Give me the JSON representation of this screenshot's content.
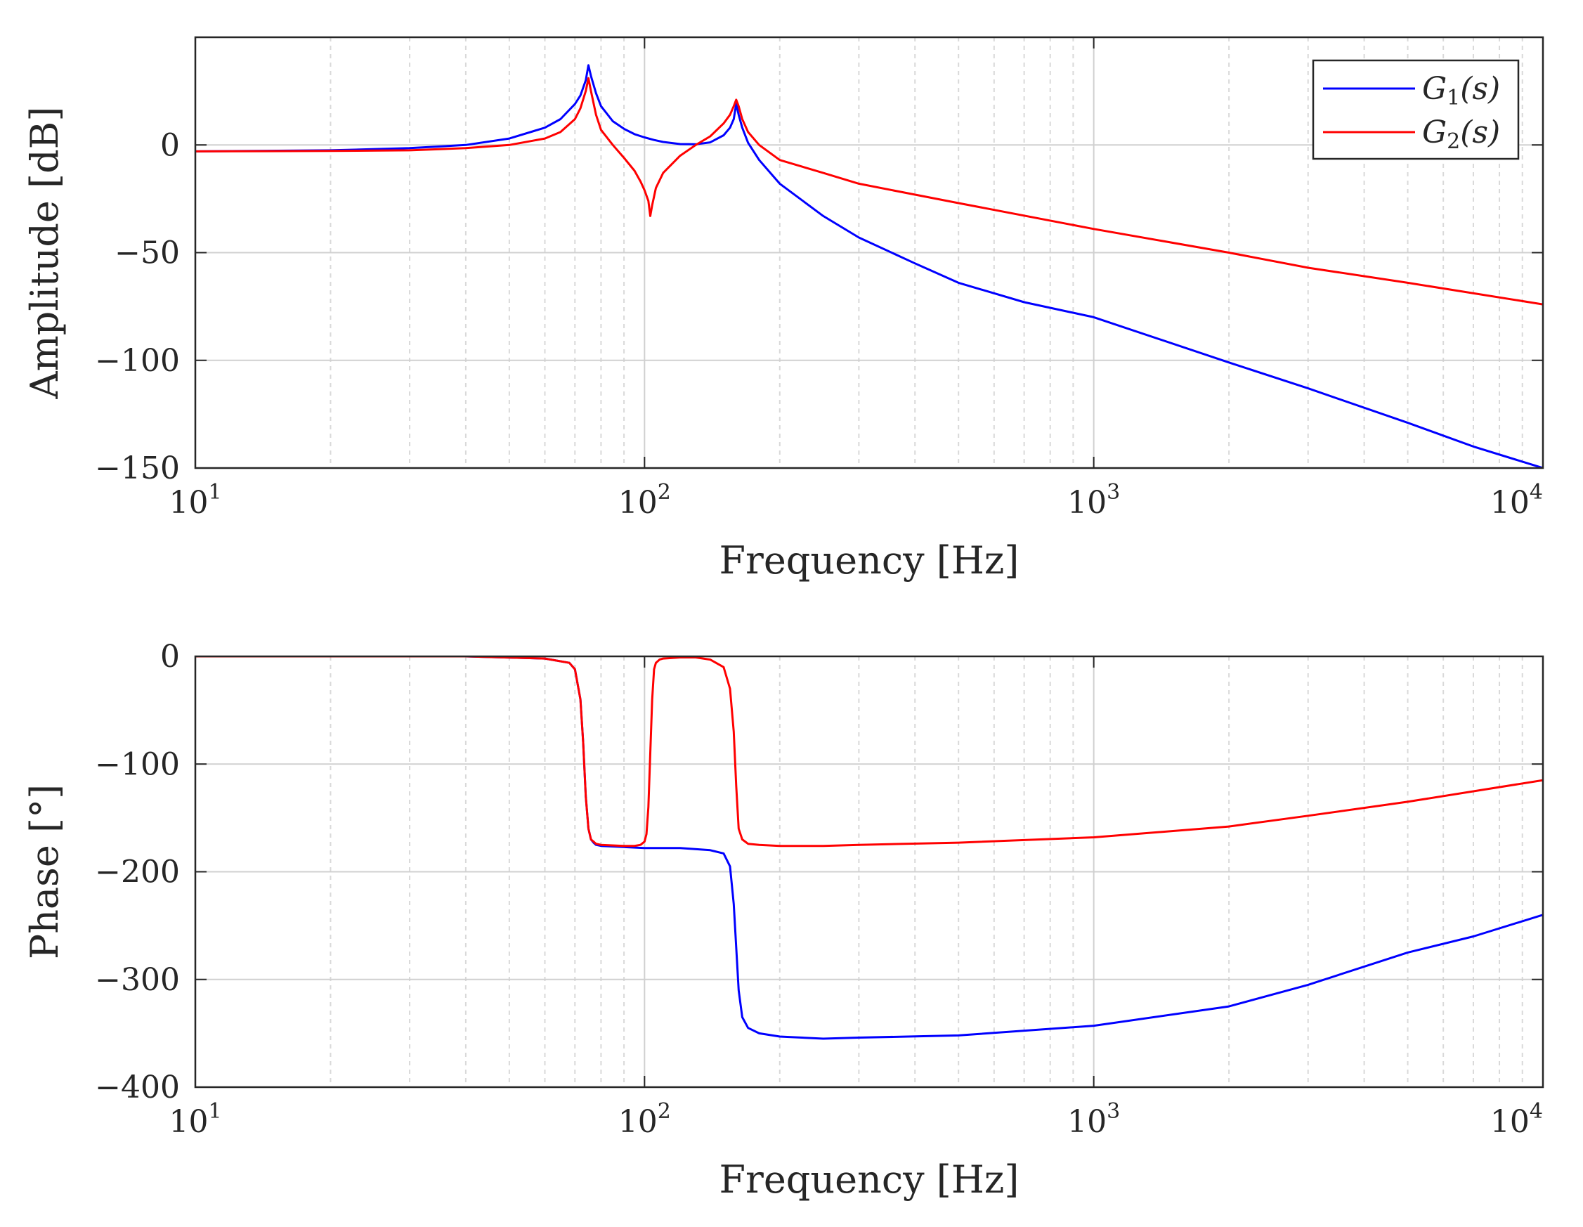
{
  "chart_data": [
    {
      "id": "amplitude",
      "type": "line",
      "xscale": "log",
      "xlim": [
        10,
        10000
      ],
      "ylim": [
        -150,
        50
      ],
      "yticks": [
        0,
        -50,
        -100,
        -150
      ],
      "ytick_labels": [
        "0",
        "−50",
        "−100",
        "−150"
      ],
      "xticks": [
        10,
        100,
        1000,
        10000
      ],
      "xtick_labels": [
        {
          "base": "10",
          "exp": "1"
        },
        {
          "base": "10",
          "exp": "2"
        },
        {
          "base": "10",
          "exp": "3"
        },
        {
          "base": "10",
          "exp": "4"
        }
      ],
      "xlabel": "Frequency [Hz]",
      "ylabel": "Amplitude [dB]",
      "grid": true,
      "legend_position": "top-right",
      "series": [
        {
          "name": "G1(s)",
          "legend_main": "G",
          "legend_sub": "1",
          "legend_tail": "(s)",
          "color": "#0000ff",
          "x": [
            10,
            20,
            30,
            40,
            50,
            60,
            65,
            70,
            72,
            74,
            75,
            76,
            78,
            80,
            85,
            90,
            95,
            100,
            105,
            110,
            120,
            130,
            140,
            150,
            155,
            158,
            160,
            162,
            165,
            170,
            180,
            200,
            250,
            300,
            400,
            500,
            700,
            1000,
            2000,
            3000,
            5000,
            7000,
            10000
          ],
          "y": [
            -3,
            -2.5,
            -1.5,
            0,
            3,
            8,
            12,
            19,
            23,
            30,
            37,
            32,
            24,
            18,
            11,
            7.5,
            5,
            3.5,
            2.3,
            1.4,
            0.4,
            0.3,
            1.2,
            4.5,
            8,
            12,
            19,
            14,
            8,
            1,
            -7,
            -18,
            -33,
            -43,
            -55,
            -64,
            -73,
            -80,
            -101,
            -113,
            -129,
            -140,
            -150
          ]
        },
        {
          "name": "G2(s)",
          "legend_main": "G",
          "legend_sub": "2",
          "legend_tail": "(s)",
          "color": "#ff0000",
          "x": [
            10,
            20,
            30,
            40,
            50,
            60,
            65,
            70,
            72,
            74,
            75,
            76,
            78,
            80,
            85,
            90,
            95,
            98,
            100,
            102,
            103,
            104,
            106,
            110,
            120,
            130,
            140,
            150,
            155,
            158,
            160,
            162,
            165,
            170,
            180,
            200,
            250,
            300,
            500,
            1000,
            2000,
            3000,
            5000,
            10000
          ],
          "y": [
            -3,
            -2.8,
            -2.5,
            -1.5,
            0,
            3,
            6,
            12,
            17,
            25,
            31,
            25,
            14,
            7,
            0,
            -6,
            -12,
            -17,
            -21,
            -26,
            -33,
            -28,
            -20,
            -13,
            -5,
            0,
            4,
            10,
            14,
            18,
            21,
            18,
            12,
            6,
            0,
            -7,
            -13,
            -18,
            -27,
            -39,
            -50,
            -57,
            -64,
            -74
          ]
        }
      ]
    },
    {
      "id": "phase",
      "type": "line",
      "xscale": "log",
      "xlim": [
        10,
        10000
      ],
      "ylim": [
        -400,
        0
      ],
      "yticks": [
        0,
        -100,
        -200,
        -300,
        -400
      ],
      "ytick_labels": [
        "0",
        "−100",
        "−200",
        "−300",
        "−400"
      ],
      "xticks": [
        10,
        100,
        1000,
        10000
      ],
      "xtick_labels": [
        {
          "base": "10",
          "exp": "1"
        },
        {
          "base": "10",
          "exp": "2"
        },
        {
          "base": "10",
          "exp": "3"
        },
        {
          "base": "10",
          "exp": "4"
        }
      ],
      "xlabel": "Frequency [Hz]",
      "ylabel": "Phase [°]",
      "grid": true,
      "series": [
        {
          "name": "G1(s)",
          "color": "#0000ff",
          "x": [
            10,
            20,
            40,
            60,
            68,
            70,
            72,
            73,
            74,
            75,
            76,
            77,
            78,
            80,
            90,
            100,
            120,
            140,
            150,
            155,
            158,
            160,
            162,
            165,
            170,
            180,
            200,
            250,
            300,
            500,
            1000,
            2000,
            3000,
            5000,
            7000,
            10000
          ],
          "y": [
            0,
            0,
            0,
            -2,
            -6,
            -12,
            -40,
            -80,
            -130,
            -160,
            -170,
            -173,
            -175,
            -176,
            -177,
            -178,
            -178,
            -180,
            -183,
            -195,
            -230,
            -270,
            -310,
            -335,
            -345,
            -350,
            -353,
            -355,
            -354,
            -352,
            -343,
            -325,
            -305,
            -275,
            -260,
            -240
          ]
        },
        {
          "name": "G2(s)",
          "color": "#ff0000",
          "x": [
            10,
            20,
            40,
            60,
            68,
            70,
            72,
            73,
            74,
            75,
            76,
            77,
            78,
            80,
            90,
            95,
            98,
            100,
            101,
            102,
            103,
            104,
            105,
            106,
            108,
            110,
            120,
            130,
            140,
            150,
            155,
            158,
            160,
            162,
            165,
            170,
            180,
            200,
            250,
            300,
            500,
            1000,
            2000,
            3000,
            5000,
            10000
          ],
          "y": [
            0,
            0,
            0,
            -2,
            -6,
            -12,
            -40,
            -80,
            -130,
            -160,
            -170,
            -172,
            -174,
            -175,
            -176,
            -176,
            -175,
            -172,
            -165,
            -140,
            -90,
            -40,
            -12,
            -6,
            -3,
            -2,
            -1,
            -1,
            -3,
            -10,
            -30,
            -70,
            -120,
            -160,
            -170,
            -174,
            -175,
            -176,
            -176,
            -175,
            -173,
            -168,
            -158,
            -148,
            -135,
            -115
          ]
        }
      ]
    }
  ]
}
